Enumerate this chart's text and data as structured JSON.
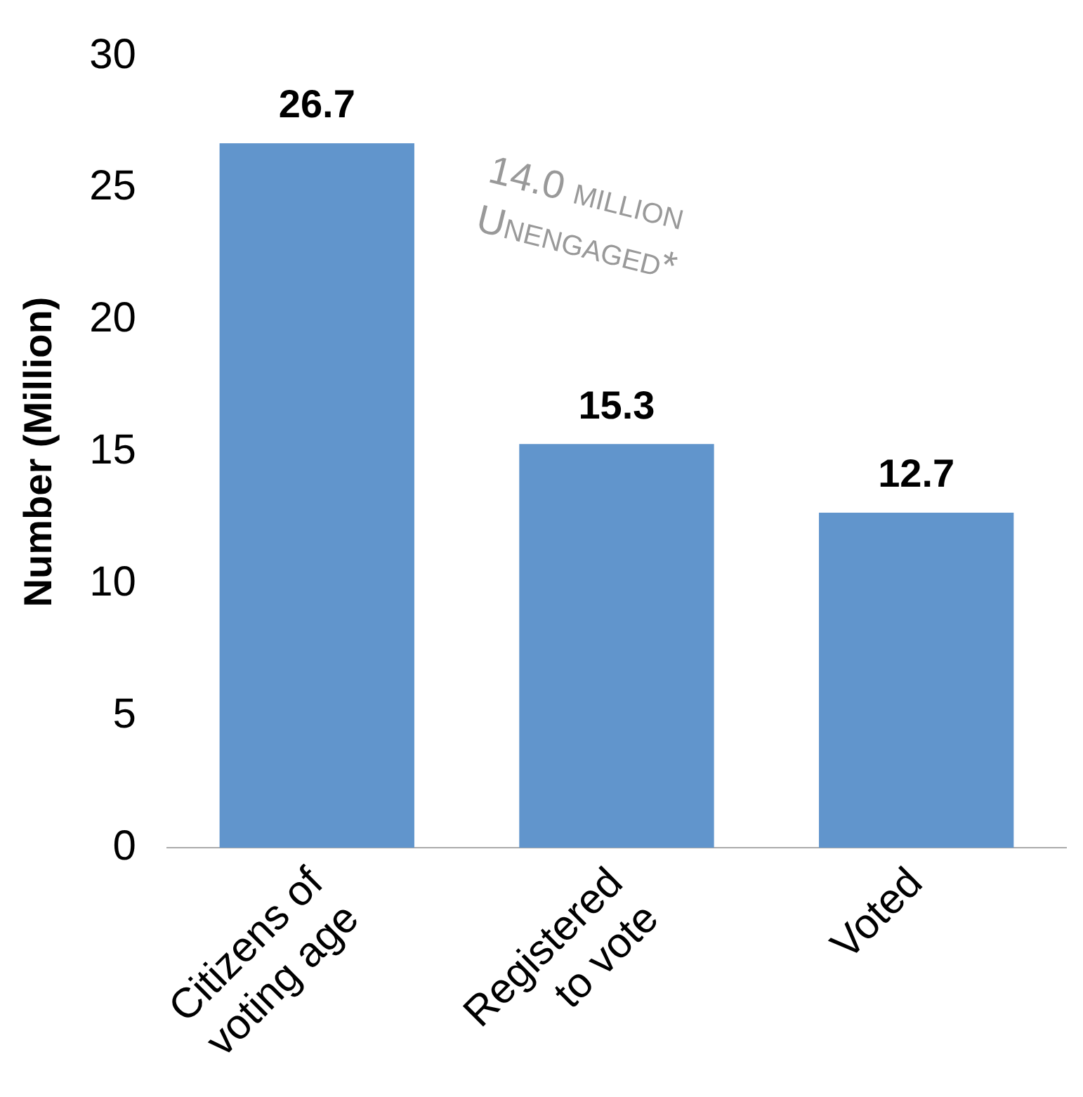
{
  "chart_data": {
    "type": "bar",
    "categories": [
      "Citizens of voting age",
      "Registered to vote",
      "Voted"
    ],
    "values": [
      26.7,
      15.3,
      12.7
    ],
    "color": "#6195cc",
    "ylabel": "Number (Million)",
    "ylim": [
      0,
      30
    ],
    "yticks": [
      0,
      5,
      10,
      15,
      20,
      25,
      30
    ],
    "grid": false,
    "legend": false,
    "data_labels": true,
    "annotations": [
      "14.0 million Unengaged*"
    ]
  }
}
